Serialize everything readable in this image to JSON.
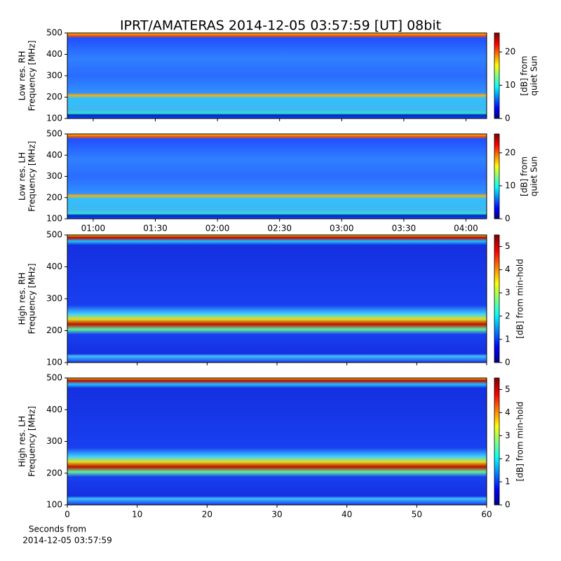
{
  "title": "IPRT/AMATERAS 2014-12-05 03:57:59 [UT]   08bit",
  "chart_data": [
    {
      "type": "heatmap",
      "ylabel": [
        "Low res. RH",
        "Frequency [MHz]"
      ],
      "ylim": [
        100,
        500
      ],
      "yticks": [
        100,
        200,
        300,
        400,
        500
      ],
      "xlim": [
        47.5,
        250
      ],
      "xticks": [
        60,
        90,
        120,
        150,
        180,
        210,
        240
      ],
      "xtick_labels": false,
      "colorbar_label": [
        "[dB] from",
        "quiet Sun"
      ],
      "clim": [
        0,
        25.7
      ],
      "cticks": [
        0,
        10,
        20
      ]
    },
    {
      "type": "heatmap",
      "ylabel": [
        "Low res. LH",
        "Frequency [MHz]"
      ],
      "ylim": [
        100,
        500
      ],
      "yticks": [
        100,
        200,
        300,
        400,
        500
      ],
      "xlim": [
        47.5,
        250
      ],
      "xticks": [
        {
          "value": 60,
          "label": "01:00"
        },
        {
          "value": 90,
          "label": "01:30"
        },
        {
          "value": 120,
          "label": "02:00"
        },
        {
          "value": 150,
          "label": "02:30"
        },
        {
          "value": 180,
          "label": "03:00"
        },
        {
          "value": 210,
          "label": "03:30"
        },
        {
          "value": 240,
          "label": "04:00"
        }
      ],
      "xtick_labels": true,
      "colorbar_label": [
        "[dB] from",
        "quiet Sun"
      ],
      "clim": [
        0,
        25.7
      ],
      "cticks": [
        0,
        10,
        20
      ]
    },
    {
      "type": "heatmap",
      "ylabel": [
        "High res. RH",
        "Frequency [MHz]"
      ],
      "ylim": [
        100,
        500
      ],
      "yticks": [
        100,
        200,
        300,
        400,
        500
      ],
      "xlim": [
        0,
        60
      ],
      "xticks": [
        0,
        10,
        20,
        30,
        40,
        50,
        60
      ],
      "xtick_labels": false,
      "colorbar_label": [
        "[dB] from min-hold"
      ],
      "clim": [
        0,
        5.5
      ],
      "cticks": [
        0,
        1,
        2,
        3,
        4,
        5
      ]
    },
    {
      "type": "heatmap",
      "ylabel": [
        "High res. LH",
        "Frequency [MHz]"
      ],
      "ylim": [
        100,
        500
      ],
      "yticks": [
        100,
        200,
        300,
        400,
        500
      ],
      "xlim": [
        0,
        60
      ],
      "xticks": [
        0,
        10,
        20,
        30,
        40,
        50,
        60
      ],
      "xtick_labels": true,
      "xlabel": [
        "Seconds from",
        "2014-12-05 03:57:59"
      ],
      "colorbar_label": [
        "[dB] from min-hold"
      ],
      "clim": [
        0,
        5.5
      ],
      "cticks": [
        0,
        1,
        2,
        3,
        4,
        5
      ]
    }
  ]
}
